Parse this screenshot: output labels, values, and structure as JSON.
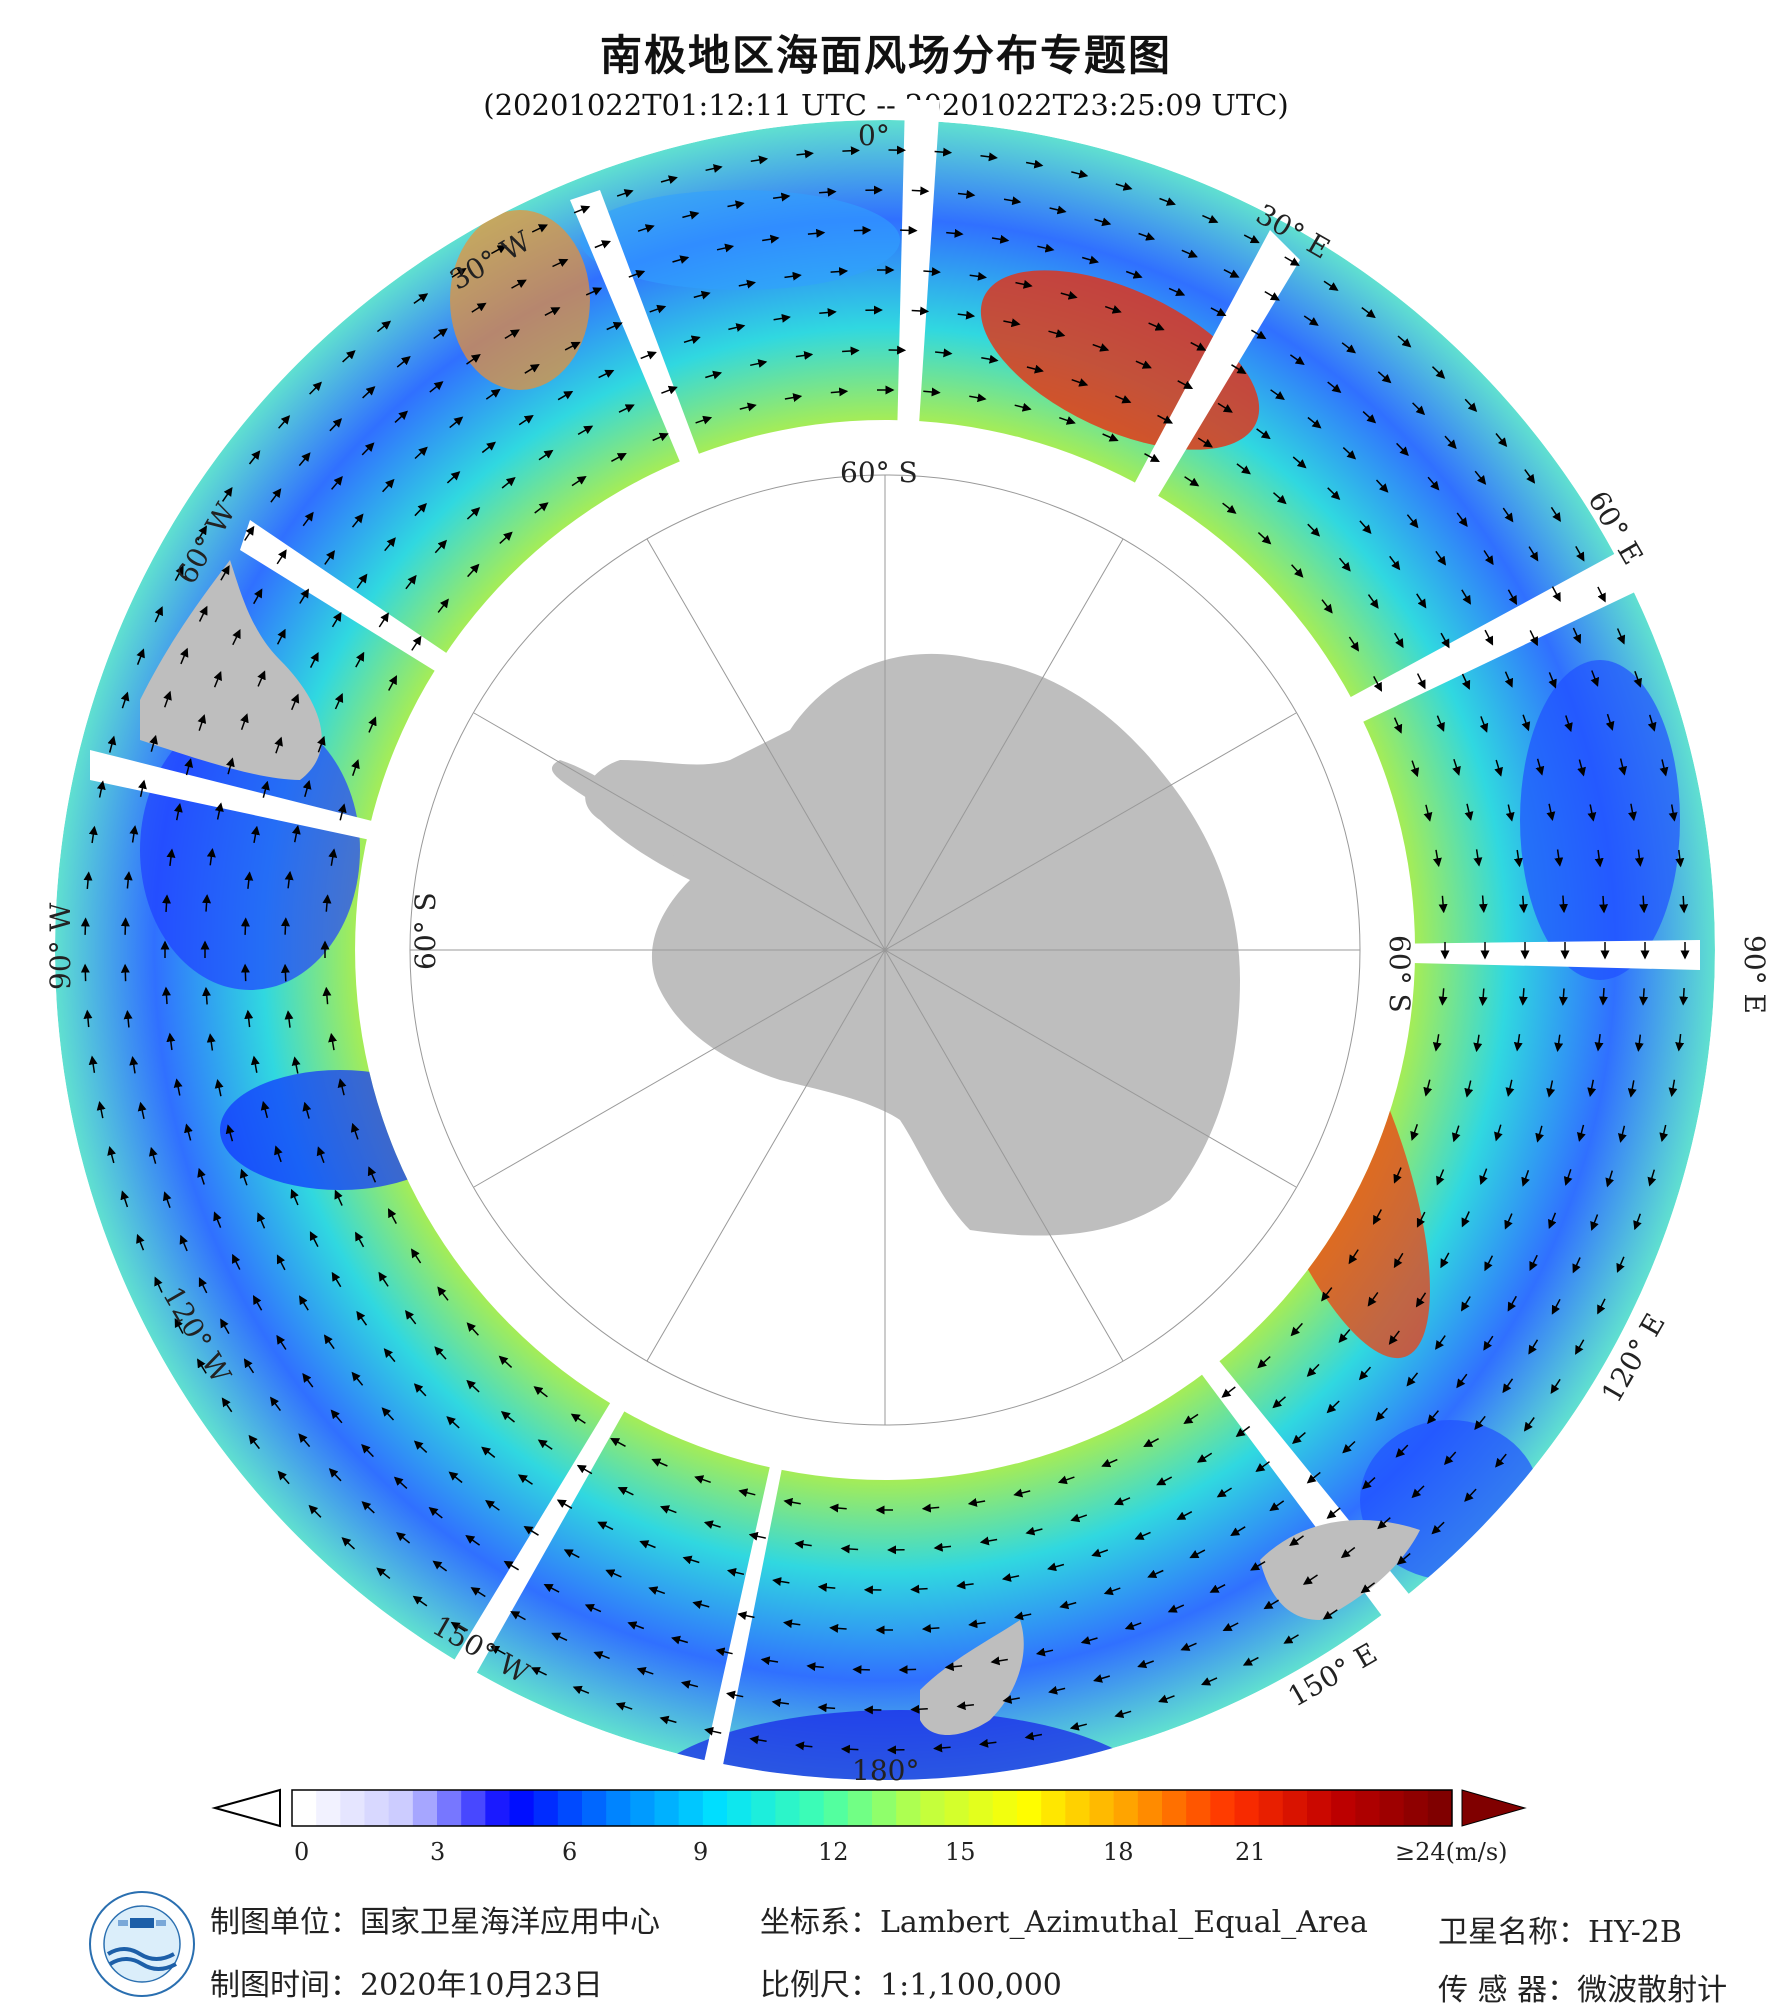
{
  "title": "南极地区海面风场分布专题图",
  "subtitle": "(20201022T01:12:11 UTC -- 20201022T23:25:09 UTC)",
  "longitude_labels": [
    "0°",
    "30° E",
    "60° E",
    "90° E",
    "120° E",
    "150° E",
    "180°",
    "150° W",
    "120° W",
    "90° W",
    "60° W",
    "30° W"
  ],
  "latitude_labels": [
    "60° S",
    "60° S",
    "60° S"
  ],
  "colorbar": {
    "unit": "(m/s)",
    "ticks": [
      "0",
      "3",
      "6",
      "9",
      "12",
      "15",
      "18",
      "21",
      "≥24(m/s)"
    ],
    "range": [
      0,
      24
    ],
    "colors": [
      "#ffffff",
      "#c8c8ff",
      "#0000ff",
      "#0080ff",
      "#00e0ff",
      "#40ffb0",
      "#c0ff40",
      "#ffff00",
      "#ffa000",
      "#ff3000",
      "#c00000",
      "#800000"
    ]
  },
  "footer": {
    "org": "制图单位：国家卫星海洋应用中心",
    "date": "制图时间：2020年10月23日",
    "crs": "坐标系：Lambert_Azimuthal_Equal_Area",
    "scale": "比例尺：1:1,100,000",
    "satellite": "卫星名称：HY-2B",
    "sensor": "传 感 器：微波散射计"
  },
  "colors": {
    "land": "#bebebe",
    "grid": "#888888",
    "ocean_low": "#2040ff",
    "ocean_mid": "#40e8c0",
    "ocean_high": "#ff4000"
  }
}
